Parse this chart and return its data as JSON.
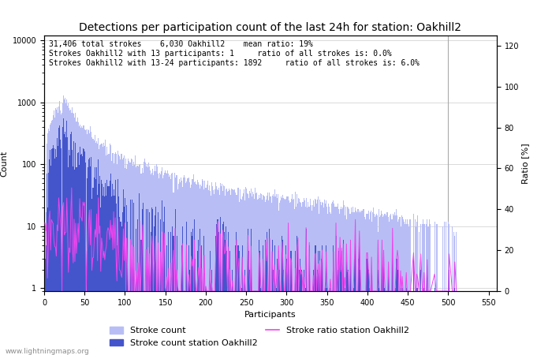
{
  "title": "Detections per participation count of the last 24h for station: Oakhill2",
  "xlabel": "Participants",
  "ylabel_left": "Count",
  "ylabel_right": "Ratio [%]",
  "annotation_lines": [
    "31,406 total strokes    6,030 Oakhill2    mean ratio: 19%",
    "Strokes Oakhill2 with 13 participants: 1     ratio of all strokes is: 0.0%",
    "Strokes Oakhill2 with 13-24 participants: 1892     ratio of all strokes is: 6.0%"
  ],
  "xlim": [
    0,
    560
  ],
  "ylim_ratio": [
    0,
    125
  ],
  "ratio_ticks": [
    0,
    20,
    40,
    60,
    80,
    100,
    120
  ],
  "vline_x": 500,
  "watermark": "www.lightningmaps.org",
  "bar_color_all": "#b8bef5",
  "bar_color_station": "#4455cc",
  "ratio_line_color": "#ee44ee",
  "title_fontsize": 10,
  "annotation_fontsize": 7,
  "axis_fontsize": 8,
  "legend_fontsize": 8
}
